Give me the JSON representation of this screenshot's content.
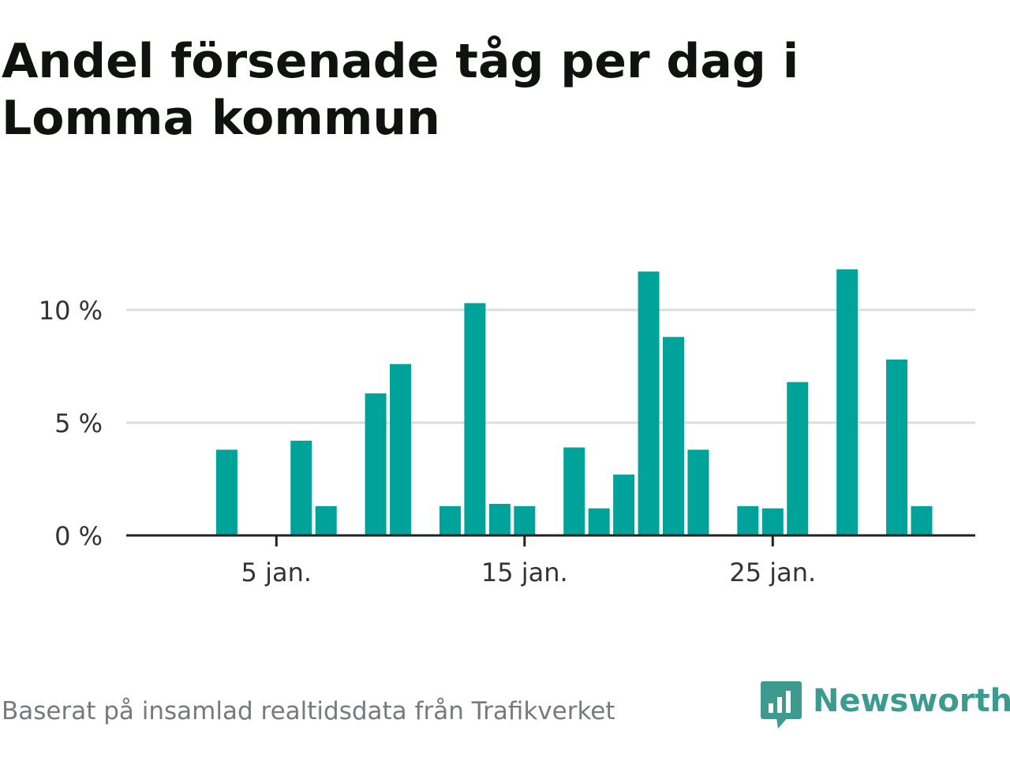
{
  "header": {
    "title": "Andel försenade tåg per dag i Lomma kommun"
  },
  "footer": {
    "source": "Baserat på insamlad realtidsdata från Trafikverket",
    "brand": "Newsworthy",
    "brand_icon": "bar-chart-speech-bubble-icon"
  },
  "colors": {
    "bar": "#00a39a",
    "grid": "#dcdcdc",
    "axis": "#222222",
    "brand": "#3c9a8f"
  },
  "chart_data": {
    "type": "bar",
    "title": "Andel försenade tåg per dag i Lomma kommun",
    "xlabel": "",
    "ylabel": "",
    "x_unit": "day of January",
    "x_ticks": [
      {
        "day": 5,
        "label": "5 jan."
      },
      {
        "day": 15,
        "label": "15 jan."
      },
      {
        "day": 25,
        "label": "25 jan."
      }
    ],
    "y_ticks": [
      {
        "value": 0,
        "label": "0 %"
      },
      {
        "value": 5,
        "label": "5 %"
      },
      {
        "value": 10,
        "label": "10 %"
      }
    ],
    "xlim": [
      0,
      31
    ],
    "ylim": [
      0,
      12
    ],
    "grid": true,
    "series": [
      {
        "values": [
          {
            "day": 3,
            "value": 3.8
          },
          {
            "day": 6,
            "value": 4.2
          },
          {
            "day": 7,
            "value": 1.3
          },
          {
            "day": 9,
            "value": 6.3
          },
          {
            "day": 10,
            "value": 7.6
          },
          {
            "day": 12,
            "value": 1.3
          },
          {
            "day": 13,
            "value": 10.3
          },
          {
            "day": 14,
            "value": 1.4
          },
          {
            "day": 15,
            "value": 1.3
          },
          {
            "day": 17,
            "value": 3.9
          },
          {
            "day": 18,
            "value": 1.2
          },
          {
            "day": 19,
            "value": 2.7
          },
          {
            "day": 20,
            "value": 11.7
          },
          {
            "day": 21,
            "value": 8.8
          },
          {
            "day": 22,
            "value": 3.8
          },
          {
            "day": 24,
            "value": 1.3
          },
          {
            "day": 25,
            "value": 1.2
          },
          {
            "day": 26,
            "value": 6.8
          },
          {
            "day": 28,
            "value": 11.8
          },
          {
            "day": 30,
            "value": 7.8
          },
          {
            "day": 31,
            "value": 1.3
          }
        ]
      }
    ]
  }
}
